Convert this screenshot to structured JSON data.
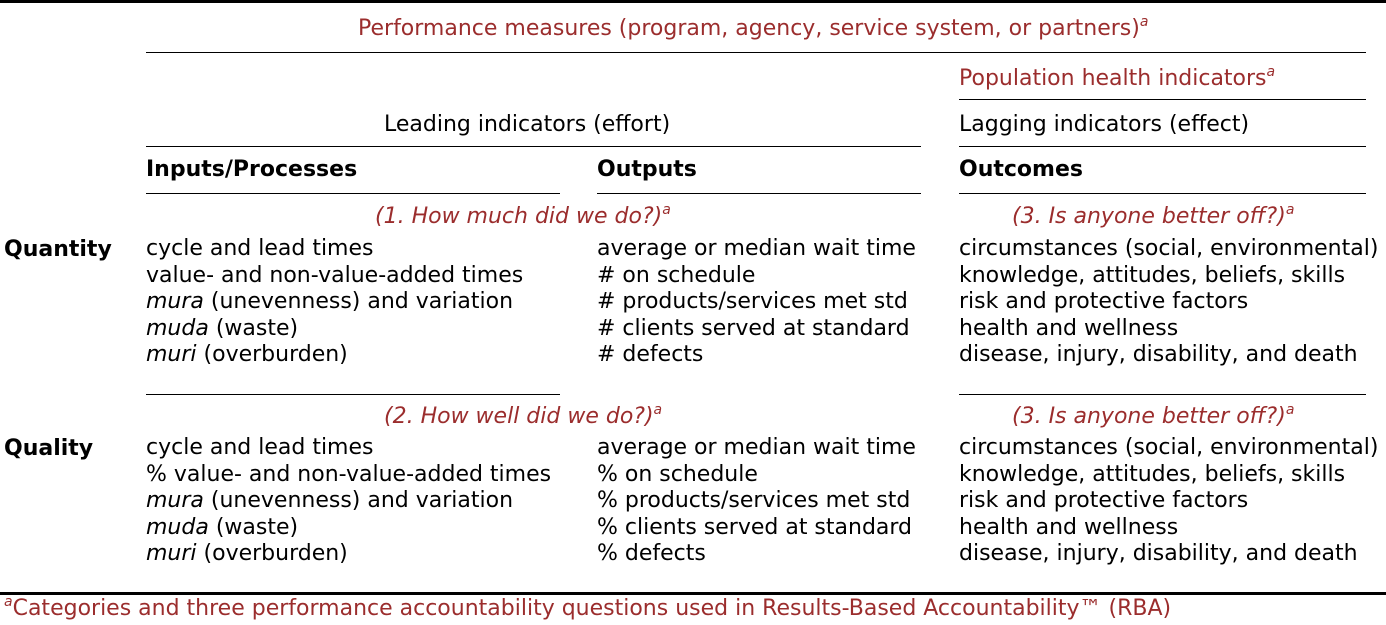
{
  "header": {
    "performance_measures": "Performance measures (program, agency, service system, or partners)",
    "population_health": "Population health indicators",
    "leading": "Leading indicators (effort)",
    "lagging": "Lagging indicators (effect)",
    "sup_mark": "a"
  },
  "columns": {
    "inputs": "Inputs/Processes",
    "outputs": "Outputs",
    "outcomes": "Outcomes"
  },
  "sections": [
    {
      "row_label": "Quantity",
      "question_left": "(1. How much did we do?)",
      "question_right": "(3. Is anyone better off?)",
      "inputs": [
        {
          "em": "",
          "text": "cycle and lead times"
        },
        {
          "em": "",
          "text": "value- and non-value-added times"
        },
        {
          "em": "mura",
          "text": " (unevenness) and variation"
        },
        {
          "em": "muda",
          "text": " (waste)"
        },
        {
          "em": "muri",
          "text": " (overburden)"
        }
      ],
      "outputs": [
        "average or median wait time",
        "# on schedule",
        "# products/services met std",
        "# clients served at standard",
        "# defects"
      ],
      "outcomes": [
        "circumstances (social, environmental)",
        "knowledge, attitudes, beliefs, skills",
        "risk and protective factors",
        "health and wellness",
        "disease, injury, disability, and death"
      ]
    },
    {
      "row_label": "Quality",
      "question_left": "(2. How well did we do?)",
      "question_right": "(3. Is anyone better off?)",
      "inputs": [
        {
          "em": "",
          "text": "cycle and lead times"
        },
        {
          "em": "",
          "text": "% value- and non-value-added times"
        },
        {
          "em": "mura",
          "text": " (unevenness) and variation"
        },
        {
          "em": "muda",
          "text": " (waste)"
        },
        {
          "em": "muri",
          "text": " (overburden)"
        }
      ],
      "outputs": [
        "average or median wait time",
        "% on schedule",
        "% products/services met std",
        "% clients served at standard",
        "% defects"
      ],
      "outcomes": [
        "circumstances (social, environmental)",
        "knowledge, attitudes, beliefs, skills",
        "risk and protective factors",
        "health and wellness",
        "disease, injury, disability, and death"
      ]
    }
  ],
  "footnote": {
    "mark": "a",
    "text": "Categories and three performance accountability questions used in Results-Based Accountability™ (RBA)"
  },
  "colors": {
    "accent": "#9b2d2d",
    "text": "#000000",
    "rule": "#000000"
  }
}
